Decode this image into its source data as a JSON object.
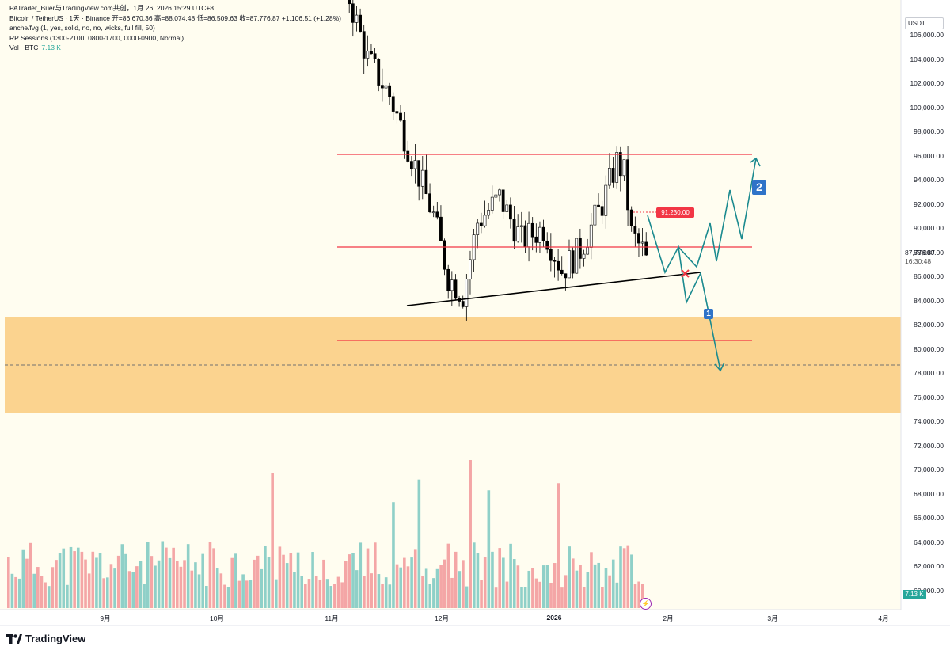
{
  "header": {
    "title_line": "PATrader_Buer与TradingView.com共创，1月 26, 2026 15:29 UTC+8",
    "ohlc_line": "Bitcoin / TetherUS · 1天 · Binance  开=86,670.36  高=88,074.48  低=86,509.63  收=87,776.87  +1,106.51 (+1.28%)",
    "indicator_1": "anche/fvg (1, yes, solid, no, no, wicks, full fill, 50)",
    "indicator_2": "RP Sessions (1300-2100, 0800-1700, 0000-0900, Normal)",
    "vol_label": "Vol · BTC",
    "vol_value": "7.13 K"
  },
  "axis": {
    "currency": "USDT",
    "price_tag": "87,776.87",
    "countdown": "16:30:48",
    "y_labels": [
      "106,000.00",
      "104,000.00",
      "102,000.00",
      "100,000.00",
      "98,000.00",
      "96,000.00",
      "94,000.00",
      "92,000.00",
      "90,000.00",
      "88,000.00",
      "86,000.00",
      "84,000.00",
      "82,000.00",
      "80,000.00",
      "78,000.00",
      "76,000.00",
      "74,000.00",
      "72,000.00",
      "70,000.00",
      "68,000.00",
      "66,000.00",
      "64,000.00",
      "62,000.00",
      "60,000.00"
    ],
    "x_labels": [
      "9月",
      "10月",
      "11月",
      "12月",
      "2026",
      "2月",
      "3月",
      "4月"
    ],
    "vol_badge": "7.13 K"
  },
  "annotations": {
    "level_tag": "91,230.00",
    "scenario_1": "1",
    "scenario_2": "2",
    "zone_color": "#fbd38f",
    "resistance_color": "#f23645",
    "projection_color": "#1b8a8f",
    "trendline_color": "#000000"
  },
  "brand": {
    "name": "TradingView"
  },
  "chart_data": {
    "type": "candlestick",
    "symbol": "Bitcoin / TetherUS",
    "timeframe": "1天",
    "exchange": "Binance",
    "last": {
      "open": 86670.36,
      "high": 88074.48,
      "low": 86509.63,
      "close": 87776.87,
      "change": 1106.51,
      "change_pct": 1.28
    },
    "ylim": [
      58800,
      107500
    ],
    "horizontal_levels": [
      96000,
      88300,
      80500
    ],
    "zone": [
      74600,
      82600
    ],
    "dashed_level": 78500,
    "trendline": [
      [
        "2025-11-21",
        83500
      ],
      [
        "2026-02-15",
        86200
      ]
    ],
    "candles_close": [
      87100,
      88200,
      89600,
      90300,
      88400,
      86600,
      85600,
      86400,
      90900,
      87800,
      87300,
      89500,
      92700,
      91300,
      91600,
      94000,
      91000,
      89400,
      92100,
      93200,
      89600,
      88300,
      85600,
      85600,
      86600,
      85200,
      87700,
      88100,
      87300,
      87500,
      88900,
      87300,
      87800,
      89100,
      87900,
      88500,
      90100,
      91200,
      93700,
      94300,
      91000,
      92600,
      90700,
      89700,
      91400,
      92600,
      96700,
      97100,
      95500,
      93300,
      92700,
      89700,
      89100,
      89400,
      86600,
      87777
    ],
    "volume_k": [
      8.5,
      5.2,
      9.1,
      6.3,
      10.4,
      7.8,
      5.6,
      13.2,
      21.0,
      12.5,
      9.8,
      8.1,
      7.2,
      14.6,
      10.3,
      9.1,
      6.8,
      11.4,
      8.7,
      7.3,
      6.2,
      9.5,
      12.1,
      8.4,
      7.6,
      6.9,
      10.2,
      8.8,
      7.1,
      9.3,
      6.5,
      8.0,
      7.4,
      11.6,
      9.2,
      8.3,
      10.8,
      7.7,
      6.6,
      9.9,
      12.4,
      8.5,
      7.3,
      10.1,
      6.8,
      7.9,
      11.3,
      9.6,
      7.0,
      8.2,
      6.4,
      9.1,
      7.5,
      6.2,
      9.8,
      7.13
    ],
    "projections": [
      {
        "name": "1",
        "points": [
          [
            "2026-01-26",
            91000
          ],
          [
            "2026-02-04",
            88300
          ],
          [
            "2026-02-08",
            86200
          ],
          [
            "2026-02-10",
            83500
          ],
          [
            "2026-02-14",
            86200
          ],
          [
            "2026-02-23",
            78300
          ]
        ]
      },
      {
        "name": "2",
        "points": [
          [
            "2026-01-26",
            91000
          ],
          [
            "2026-02-04",
            88300
          ],
          [
            "2026-02-08",
            86200
          ],
          [
            "2026-02-12",
            88900
          ],
          [
            "2026-02-16",
            86000
          ],
          [
            "2026-02-22",
            92400
          ],
          [
            "2026-02-26",
            89100
          ],
          [
            "2026-03-04",
            95900
          ]
        ]
      }
    ]
  }
}
